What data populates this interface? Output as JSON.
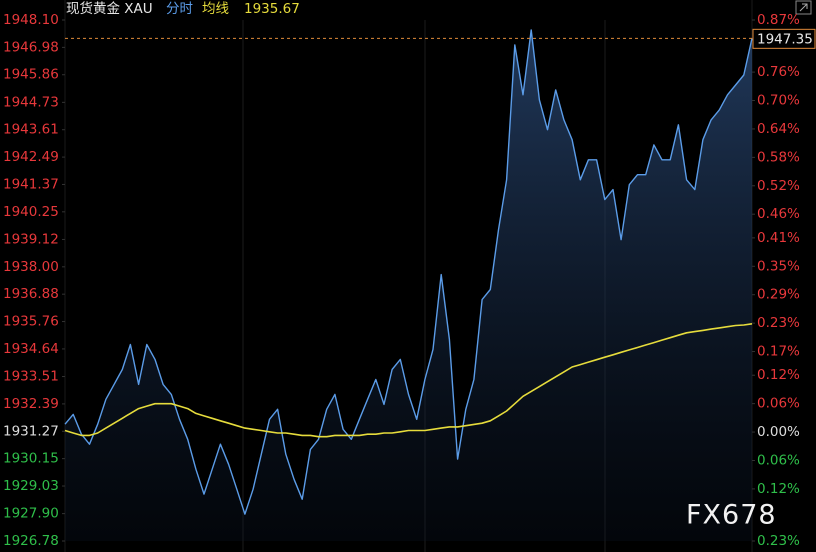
{
  "chart_data": {
    "type": "line",
    "title": "现货黄金 XAU",
    "watermark": "FX678",
    "series": [
      {
        "name": "分时",
        "color": "#5b9ce8",
        "values": [
          1931.56,
          1931.96,
          1931.15,
          1930.74,
          1931.56,
          1932.58,
          1933.19,
          1933.8,
          1934.82,
          1933.19,
          1934.82,
          1934.21,
          1933.19,
          1932.78,
          1931.76,
          1930.94,
          1929.72,
          1928.7,
          1929.72,
          1930.74,
          1929.92,
          1928.9,
          1927.88,
          1928.9,
          1930.33,
          1931.76,
          1932.17,
          1930.33,
          1929.31,
          1928.49,
          1930.53,
          1930.94,
          1932.17,
          1932.78,
          1931.35,
          1930.94,
          1931.76,
          1932.58,
          1933.39,
          1932.37,
          1933.8,
          1934.21,
          1932.78,
          1931.76,
          1933.39,
          1934.62,
          1937.68,
          1935.03,
          1930.13,
          1932.17,
          1933.39,
          1936.66,
          1937.07,
          1939.52,
          1941.56,
          1947.08,
          1945.04,
          1947.69,
          1944.83,
          1943.61,
          1945.24,
          1944.01,
          1943.2,
          1941.56,
          1942.38,
          1942.38,
          1940.75,
          1941.16,
          1939.11,
          1941.36,
          1941.77,
          1941.77,
          1942.99,
          1942.38,
          1942.38,
          1943.81,
          1941.56,
          1941.16,
          1943.2,
          1944.01,
          1944.42,
          1945.04,
          1945.44,
          1945.85,
          1947.35
        ]
      },
      {
        "name": "均线",
        "color": "#e6dc3c",
        "values": [
          1931.3,
          1931.2,
          1931.1,
          1931.1,
          1931.2,
          1931.4,
          1931.6,
          1931.8,
          1932.0,
          1932.2,
          1932.3,
          1932.4,
          1932.4,
          1932.4,
          1932.3,
          1932.2,
          1932.0,
          1931.9,
          1931.8,
          1931.7,
          1931.6,
          1931.5,
          1931.4,
          1931.35,
          1931.3,
          1931.25,
          1931.2,
          1931.2,
          1931.15,
          1931.1,
          1931.1,
          1931.05,
          1931.05,
          1931.1,
          1931.1,
          1931.1,
          1931.1,
          1931.15,
          1931.15,
          1931.2,
          1931.2,
          1931.25,
          1931.3,
          1931.3,
          1931.3,
          1931.35,
          1931.4,
          1931.45,
          1931.45,
          1931.5,
          1931.55,
          1931.6,
          1931.7,
          1931.9,
          1932.1,
          1932.4,
          1932.7,
          1932.9,
          1933.1,
          1933.3,
          1933.5,
          1933.7,
          1933.9,
          1934.0,
          1934.1,
          1934.2,
          1934.3,
          1934.4,
          1934.5,
          1934.6,
          1934.7,
          1934.8,
          1934.9,
          1935.0,
          1935.1,
          1935.2,
          1935.3,
          1935.35,
          1935.4,
          1935.45,
          1935.5,
          1935.55,
          1935.6,
          1935.62,
          1935.67
        ]
      }
    ],
    "ylim": [
      1926.78,
      1948.1
    ],
    "yticks": [
      {
        "value": 1948.1,
        "label": "1948.10"
      },
      {
        "value": 1946.98,
        "label": "1946.98"
      },
      {
        "value": 1945.86,
        "label": "1945.86"
      },
      {
        "value": 1944.73,
        "label": "1944.73"
      },
      {
        "value": 1943.61,
        "label": "1943.61"
      },
      {
        "value": 1942.49,
        "label": "1942.49"
      },
      {
        "value": 1941.37,
        "label": "1941.37"
      },
      {
        "value": 1940.25,
        "label": "1940.25"
      },
      {
        "value": 1939.12,
        "label": "1939.12"
      },
      {
        "value": 1938.0,
        "label": "1938.00"
      },
      {
        "value": 1936.88,
        "label": "1936.88"
      },
      {
        "value": 1935.76,
        "label": "1935.76"
      },
      {
        "value": 1934.64,
        "label": "1934.64"
      },
      {
        "value": 1933.51,
        "label": "1933.51"
      },
      {
        "value": 1932.39,
        "label": "1932.39"
      },
      {
        "value": 1931.27,
        "label": "1931.27"
      },
      {
        "value": 1930.15,
        "label": "1930.15"
      },
      {
        "value": 1929.03,
        "label": "1929.03"
      },
      {
        "value": 1927.9,
        "label": "1927.90"
      },
      {
        "value": 1926.78,
        "label": "1926.78"
      }
    ],
    "y2lim": [
      -0.23,
      0.87
    ],
    "y2ticks": [
      {
        "value": 0.87,
        "label": "0.87%"
      },
      {
        "value": 0.76,
        "label": "0.76%"
      },
      {
        "value": 0.7,
        "label": "0.70%"
      },
      {
        "value": 0.64,
        "label": "0.64%"
      },
      {
        "value": 0.58,
        "label": "0.58%"
      },
      {
        "value": 0.52,
        "label": "0.52%"
      },
      {
        "value": 0.46,
        "label": "0.46%"
      },
      {
        "value": 0.41,
        "label": "0.41%"
      },
      {
        "value": 0.35,
        "label": "0.35%"
      },
      {
        "value": 0.29,
        "label": "0.29%"
      },
      {
        "value": 0.23,
        "label": "0.23%"
      },
      {
        "value": 0.17,
        "label": "0.17%"
      },
      {
        "value": 0.12,
        "label": "0.12%"
      },
      {
        "value": 0.06,
        "label": "0.06%"
      },
      {
        "value": 0.0,
        "label": "0.00%"
      },
      {
        "value": -0.06,
        "label": "0.06%"
      },
      {
        "value": -0.12,
        "label": "0.12%"
      },
      {
        "value": -0.23,
        "label": "0.23%"
      }
    ],
    "up_color": "#e8383b",
    "down_color": "#2fbf4a",
    "flat_color": "#dddddd",
    "last_price_color": "#e08a3a"
  }
}
